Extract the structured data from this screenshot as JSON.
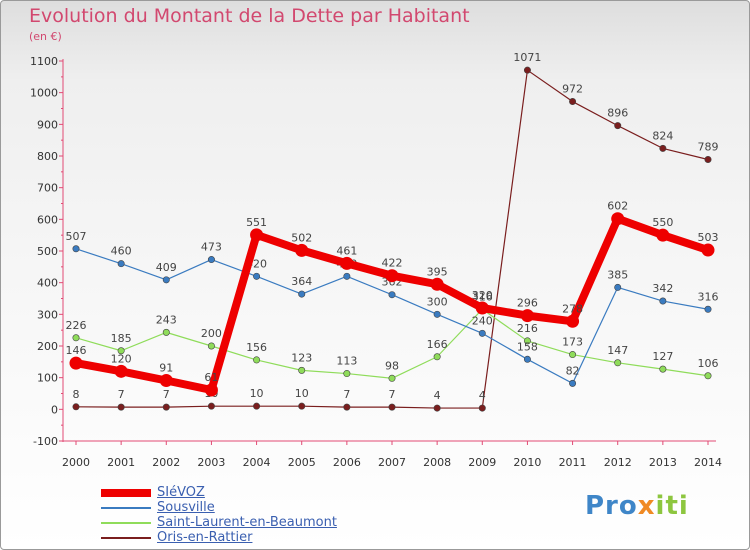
{
  "header": {
    "title": "Evolution du Montant de la Dette par Habitant",
    "subtitle": "(en €)"
  },
  "chart_data": {
    "type": "line",
    "title": "Evolution du Montant de la Dette par Habitant",
    "subtitle": "(en €)",
    "xlabel": "",
    "ylabel": "",
    "x": [
      2000,
      2001,
      2002,
      2003,
      2004,
      2005,
      2006,
      2007,
      2008,
      2009,
      2010,
      2011,
      2012,
      2013,
      2014
    ],
    "ylim": [
      -100,
      1100
    ],
    "yticks": [
      -100,
      0,
      100,
      200,
      300,
      400,
      500,
      600,
      700,
      800,
      900,
      1000,
      1100
    ],
    "grid": false,
    "legend_position": "bottom-left",
    "series": [
      {
        "name": "Oris-en-Rattier",
        "color": "#7a1e1e",
        "values": [
          8,
          7,
          7,
          10,
          10,
          10,
          7,
          7,
          4,
          4,
          1071,
          972,
          896,
          824,
          789
        ]
      },
      {
        "name": "Saint-Laurent-en-Beaumont",
        "color": "#8fdc5a",
        "values": [
          226,
          185,
          243,
          200,
          156,
          123,
          113,
          98,
          166,
          316,
          216,
          173,
          147,
          127,
          106
        ]
      },
      {
        "name": "Sousville",
        "color": "#3a7bc0",
        "values": [
          507,
          460,
          409,
          473,
          420,
          364,
          420,
          362,
          300,
          240,
          158,
          82,
          385,
          342,
          316
        ]
      },
      {
        "name": "SIéVOZ",
        "color": "#ee0000",
        "values": [
          146,
          120,
          91,
          61,
          551,
          502,
          461,
          422,
          395,
          320,
          296,
          278,
          602,
          550,
          503
        ]
      }
    ],
    "legend": [
      "SIéVOZ",
      "Sousville",
      "Saint-Laurent-en-Beaumont",
      "Oris-en-Rattier"
    ]
  },
  "logo": {
    "part1": "Pro",
    "part2": "x",
    "part3": "iti"
  }
}
